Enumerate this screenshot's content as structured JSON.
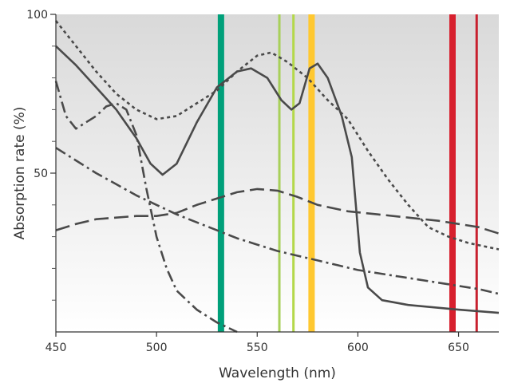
{
  "chart_data": {
    "type": "line",
    "xlabel": "Wavelength (nm)",
    "ylabel": "Absorption rate (%)",
    "xlim": [
      450,
      670
    ],
    "ylim": [
      0,
      100
    ],
    "x_ticks": [
      "450",
      "500",
      "550",
      "600",
      "650"
    ],
    "y_ticks": [
      "100",
      "50"
    ],
    "grid": false,
    "legend": "none",
    "background": "vertical gradient, light gray to white",
    "series": [
      {
        "style": "solid",
        "color": "#4a4a4a",
        "points": [
          [
            450,
            90
          ],
          [
            460,
            84
          ],
          [
            470,
            77
          ],
          [
            480,
            70
          ],
          [
            490,
            61
          ],
          [
            497,
            53
          ],
          [
            503,
            49.5
          ],
          [
            510,
            53
          ],
          [
            520,
            66
          ],
          [
            530,
            77
          ],
          [
            540,
            82
          ],
          [
            547,
            83
          ],
          [
            555,
            80
          ],
          [
            562,
            73
          ],
          [
            567,
            70
          ],
          [
            571,
            72
          ],
          [
            576,
            83
          ],
          [
            580,
            84.5
          ],
          [
            585,
            80
          ],
          [
            592,
            68
          ],
          [
            597,
            55
          ],
          [
            601,
            25
          ],
          [
            605,
            14
          ],
          [
            612,
            10
          ],
          [
            625,
            8.5
          ],
          [
            650,
            7
          ],
          [
            670,
            6
          ]
        ]
      },
      {
        "style": "dotted",
        "color": "#4a4a4a",
        "points": [
          [
            450,
            98
          ],
          [
            460,
            90
          ],
          [
            470,
            82
          ],
          [
            480,
            75
          ],
          [
            490,
            70
          ],
          [
            500,
            67
          ],
          [
            510,
            68
          ],
          [
            520,
            72
          ],
          [
            530,
            76
          ],
          [
            540,
            82
          ],
          [
            550,
            87
          ],
          [
            557,
            88
          ],
          [
            565,
            85
          ],
          [
            575,
            80
          ],
          [
            585,
            73
          ],
          [
            595,
            67
          ],
          [
            605,
            57
          ],
          [
            615,
            48
          ],
          [
            625,
            40
          ],
          [
            635,
            33
          ],
          [
            645,
            30
          ],
          [
            655,
            28
          ],
          [
            670,
            26
          ]
        ]
      },
      {
        "style": "long-dash",
        "color": "#4a4a4a",
        "points": [
          [
            450,
            32
          ],
          [
            460,
            34
          ],
          [
            470,
            35.5
          ],
          [
            480,
            36
          ],
          [
            490,
            36.5
          ],
          [
            500,
            36.5
          ],
          [
            510,
            37.5
          ],
          [
            520,
            40
          ],
          [
            530,
            42
          ],
          [
            540,
            44
          ],
          [
            550,
            45
          ],
          [
            560,
            44.5
          ],
          [
            570,
            42.5
          ],
          [
            580,
            40
          ],
          [
            595,
            38
          ],
          [
            610,
            37
          ],
          [
            625,
            36
          ],
          [
            640,
            35
          ],
          [
            650,
            34
          ],
          [
            660,
            33
          ],
          [
            670,
            31
          ]
        ]
      },
      {
        "style": "dash-dot",
        "color": "#4a4a4a",
        "points": [
          [
            450,
            58
          ],
          [
            460,
            54
          ],
          [
            470,
            50
          ],
          [
            480,
            46.5
          ],
          [
            490,
            43
          ],
          [
            500,
            40
          ],
          [
            510,
            37
          ],
          [
            520,
            34.5
          ],
          [
            530,
            32
          ],
          [
            540,
            29.5
          ],
          [
            550,
            27.5
          ],
          [
            560,
            25.5
          ],
          [
            570,
            24
          ],
          [
            580,
            22.5
          ],
          [
            590,
            21
          ],
          [
            600,
            19.5
          ],
          [
            610,
            18.5
          ],
          [
            620,
            17.5
          ],
          [
            630,
            16.5
          ],
          [
            640,
            15.5
          ],
          [
            650,
            14.5
          ],
          [
            660,
            13.5
          ],
          [
            670,
            12
          ]
        ]
      },
      {
        "style": "dash-dash-dot",
        "color": "#4a4a4a",
        "points": [
          [
            450,
            79
          ],
          [
            455,
            68
          ],
          [
            460,
            64
          ],
          [
            465,
            66
          ],
          [
            470,
            68
          ],
          [
            475,
            71
          ],
          [
            480,
            72
          ],
          [
            485,
            70
          ],
          [
            490,
            62
          ],
          [
            495,
            45
          ],
          [
            500,
            30
          ],
          [
            505,
            20
          ],
          [
            510,
            13
          ],
          [
            520,
            7
          ],
          [
            530,
            3
          ],
          [
            540,
            0
          ]
        ]
      }
    ],
    "laser_lines": [
      {
        "wavelength": 532,
        "color": "#00a07a"
      },
      {
        "wavelength": 561,
        "color": "#a8d05a"
      },
      {
        "wavelength": 568,
        "color": "#b4d84a"
      },
      {
        "wavelength": 577,
        "color": "#ffc830"
      },
      {
        "wavelength": 647,
        "color": "#d7202e"
      },
      {
        "wavelength": 659,
        "color": "#c8202e"
      }
    ]
  }
}
